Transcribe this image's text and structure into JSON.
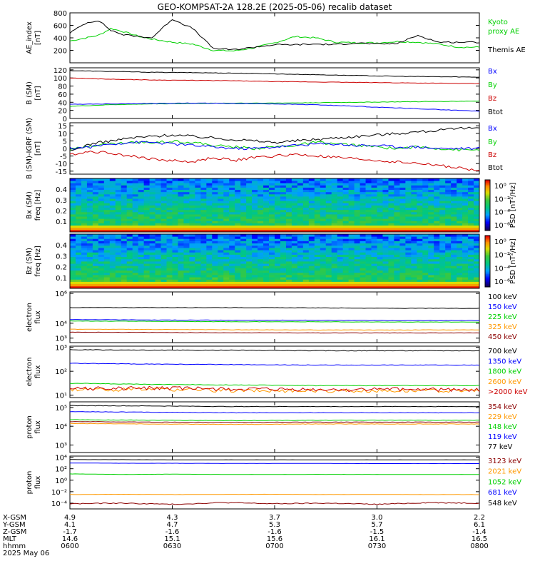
{
  "title": "GEO-KOMPSAT-2A 128.2E (2025-05-06) recalib dataset",
  "colors": {
    "black": "#000000",
    "blue": "#0000ff",
    "green": "#00d000",
    "red": "#cc0000",
    "orange": "#ff9900",
    "darkred": "#8b0000"
  },
  "chart_data": [
    {
      "id": "ae",
      "type": "line",
      "ylabel": [
        "AE_index",
        "[nT]"
      ],
      "ylim": [
        0,
        800
      ],
      "yticks": [
        "800",
        "600",
        "400",
        "200"
      ],
      "ytick_values": [
        800,
        600,
        400,
        200
      ],
      "x": [
        0,
        0.04,
        0.07,
        0.1,
        0.13,
        0.17,
        0.2,
        0.25,
        0.3,
        0.35,
        0.4,
        0.45,
        0.5,
        0.55,
        0.6,
        0.65,
        0.7,
        0.75,
        0.8,
        0.85,
        0.9,
        0.95,
        1
      ],
      "series": [
        {
          "name": "Kyoto proxy AE",
          "color": "green",
          "values": [
            350,
            400,
            440,
            550,
            500,
            420,
            380,
            330,
            300,
            200,
            190,
            240,
            320,
            420,
            400,
            330,
            320,
            320,
            340,
            330,
            300,
            250,
            250
          ]
        },
        {
          "name": "Themis AE",
          "color": "black",
          "values": [
            480,
            640,
            680,
            520,
            450,
            420,
            400,
            700,
            550,
            230,
            210,
            250,
            290,
            290,
            300,
            290,
            320,
            300,
            310,
            440,
            330,
            330,
            330
          ]
        }
      ],
      "legend": [
        {
          "label": "Kyoto",
          "color": "green"
        },
        {
          "label": "proxy AE",
          "color": "green"
        },
        {
          "label": "Themis AE",
          "color": "black"
        }
      ]
    },
    {
      "id": "bsm",
      "type": "line",
      "ylabel": [
        "B (SM)",
        "[nT]"
      ],
      "ylim": [
        0,
        125
      ],
      "yticks": [
        "120",
        "100",
        "80",
        "60",
        "40",
        "20",
        "0"
      ],
      "ytick_values": [
        120,
        100,
        80,
        60,
        40,
        20,
        0
      ],
      "x": [
        0,
        0.1,
        0.2,
        0.3,
        0.4,
        0.5,
        0.6,
        0.7,
        0.8,
        0.9,
        1
      ],
      "series": [
        {
          "name": "Btot",
          "color": "black",
          "values": [
            118,
            116,
            114,
            113,
            112,
            110,
            108,
            106,
            104,
            103,
            102
          ]
        },
        {
          "name": "Bz",
          "color": "red",
          "values": [
            100,
            97,
            95,
            94,
            93,
            91,
            90,
            89,
            88,
            87,
            86
          ]
        },
        {
          "name": "By",
          "color": "green",
          "values": [
            30,
            34,
            36,
            37,
            38,
            38,
            39,
            40,
            41,
            42,
            43
          ]
        },
        {
          "name": "Bx",
          "color": "blue",
          "values": [
            35,
            36,
            37,
            38,
            37,
            36,
            34,
            30,
            26,
            22,
            18
          ]
        }
      ],
      "legend": [
        {
          "label": "Bx",
          "color": "blue"
        },
        {
          "label": "By",
          "color": "green"
        },
        {
          "label": "Bz",
          "color": "red"
        },
        {
          "label": "Btot",
          "color": "black"
        }
      ]
    },
    {
      "id": "bigrf",
      "type": "line",
      "ylabel": [
        "B (SM)-IGRF (SM)",
        "[nT]"
      ],
      "ylim": [
        -17,
        17
      ],
      "yticks": [
        "15",
        "10",
        "5",
        "0",
        "-5",
        "-10",
        "-15"
      ],
      "ytick_values": [
        15,
        10,
        5,
        0,
        -5,
        -10,
        -15
      ],
      "x": [
        0,
        0.05,
        0.1,
        0.15,
        0.2,
        0.25,
        0.3,
        0.35,
        0.4,
        0.45,
        0.5,
        0.55,
        0.6,
        0.65,
        0.7,
        0.75,
        0.8,
        0.85,
        0.9,
        0.95,
        1
      ],
      "series": [
        {
          "name": "Btot",
          "color": "black",
          "values": [
            -2,
            3,
            5,
            7,
            8,
            9,
            8,
            7,
            6,
            5,
            4,
            5,
            6,
            7,
            8,
            9,
            10,
            11,
            12,
            13,
            14
          ]
        },
        {
          "name": "Bz",
          "color": "red",
          "values": [
            -4,
            -2,
            -3,
            -5,
            -7,
            -8,
            -9,
            -6,
            -8,
            -6,
            -5,
            -4,
            -5,
            -6,
            -7,
            -8,
            -9,
            -10,
            -11,
            -13,
            -15
          ]
        },
        {
          "name": "By",
          "color": "green",
          "values": [
            -1,
            2,
            3,
            4,
            4,
            5,
            4,
            2,
            1,
            0,
            1,
            2,
            4,
            3,
            2,
            1,
            0,
            1,
            0,
            -1,
            -1
          ]
        },
        {
          "name": "Bx",
          "color": "blue",
          "values": [
            0,
            1,
            3,
            4,
            4,
            3,
            2,
            1,
            0,
            0,
            1,
            2,
            3,
            3,
            2,
            2,
            1,
            1,
            0,
            0,
            0
          ]
        }
      ],
      "legend": [
        {
          "label": "Bx",
          "color": "blue"
        },
        {
          "label": "By",
          "color": "green"
        },
        {
          "label": "Bz",
          "color": "red"
        },
        {
          "label": "Btot",
          "color": "black"
        }
      ]
    },
    {
      "id": "spec_bx",
      "type": "heatmap",
      "ylabel": [
        "Bx (SM)",
        "freq [Hz]"
      ],
      "ylim": [
        0,
        0.5
      ],
      "yticks": [
        "0.4",
        "0.3",
        "0.2",
        "0.1"
      ],
      "ytick_values": [
        0.4,
        0.3,
        0.2,
        0.1
      ],
      "colorbar": {
        "labels": [
          "10⁰",
          "10⁻²",
          "10⁻⁴",
          "10⁻⁶"
        ],
        "title": "PSD [nT²/Hz]"
      }
    },
    {
      "id": "spec_bz",
      "type": "heatmap",
      "ylabel": [
        "Bz (SM)",
        "freq [Hz]"
      ],
      "ylim": [
        0,
        0.5
      ],
      "yticks": [
        "0.4",
        "0.3",
        "0.2",
        "0.1"
      ],
      "ytick_values": [
        0.4,
        0.3,
        0.2,
        0.1
      ],
      "colorbar": {
        "labels": [
          "10⁰",
          "10⁻²",
          "10⁻⁴",
          "10⁻⁶"
        ],
        "title": "PSD [nT²/Hz]"
      }
    },
    {
      "id": "eflux1",
      "type": "line",
      "log": true,
      "ylabel": [
        "electron",
        "flux"
      ],
      "ylim_exp": [
        2.7,
        6.1
      ],
      "yticks": [
        "10⁶",
        "10⁴",
        "10³"
      ],
      "ytick_exps": [
        6,
        4,
        3
      ],
      "series": [
        {
          "name": "100 keV",
          "color": "black",
          "values_exp": [
            5.05,
            5.05,
            5.05,
            5.03,
            5.0,
            5.0
          ]
        },
        {
          "name": "150 keV",
          "color": "blue",
          "values_exp": [
            4.25,
            4.22,
            4.2,
            4.2,
            4.18,
            4.18
          ]
        },
        {
          "name": "225 keV",
          "color": "green",
          "values_exp": [
            4.15,
            4.13,
            4.1,
            4.1,
            4.08,
            4.08
          ]
        },
        {
          "name": "325 keV",
          "color": "orange",
          "values_exp": [
            3.6,
            3.58,
            3.56,
            3.55,
            3.55,
            3.55
          ]
        },
        {
          "name": "450 keV",
          "color": "darkred",
          "values_exp": [
            3.4,
            3.38,
            3.36,
            3.35,
            3.35,
            3.35
          ]
        }
      ]
    },
    {
      "id": "eflux2",
      "type": "line",
      "log": true,
      "ylabel": [
        "electron",
        "flux"
      ],
      "ylim_exp": [
        0.9,
        3.05
      ],
      "yticks": [
        "10³",
        "10²",
        "10¹"
      ],
      "ytick_exps": [
        3,
        2,
        1
      ],
      "series": [
        {
          "name": "700 keV",
          "color": "black",
          "values_exp": [
            2.9,
            2.88,
            2.88,
            2.86,
            2.86,
            2.86
          ]
        },
        {
          "name": "1350 keV",
          "color": "blue",
          "values_exp": [
            2.33,
            2.3,
            2.28,
            2.26,
            2.26,
            2.26
          ]
        },
        {
          "name": "1800 keV",
          "color": "green",
          "values_exp": [
            1.5,
            1.45,
            1.43,
            1.4,
            1.4,
            1.4
          ]
        },
        {
          "name": "2600 keV",
          "color": "orange",
          "values_exp": [
            1.22,
            1.25,
            1.2,
            1.18,
            1.2,
            1.18
          ]
        },
        {
          "name": ">2000 keV",
          "color": "red",
          "values_exp": [
            1.27,
            1.3,
            1.25,
            1.22,
            1.25,
            1.22
          ]
        }
      ]
    },
    {
      "id": "pflux1",
      "type": "line",
      "log": true,
      "ylabel": [
        "proton",
        "flux"
      ],
      "ylim_exp": [
        2.6,
        5.3
      ],
      "yticks": [
        "10⁵",
        "10⁴",
        "10³"
      ],
      "ytick_exps": [
        5,
        4,
        3
      ],
      "series": [
        {
          "name": "354 keV",
          "color": "darkred",
          "values_exp": [
            4.25,
            4.22,
            4.2,
            4.22,
            4.22,
            4.22
          ]
        },
        {
          "name": "229 keV",
          "color": "orange",
          "values_exp": [
            4.15,
            4.12,
            4.1,
            4.12,
            4.12,
            4.12
          ]
        },
        {
          "name": "148 keV",
          "color": "green",
          "values_exp": [
            4.35,
            4.32,
            4.3,
            4.32,
            4.32,
            4.32
          ]
        },
        {
          "name": "119 keV",
          "color": "blue",
          "values_exp": [
            4.78,
            4.75,
            4.72,
            4.72,
            4.72,
            4.72
          ]
        },
        {
          "name": "77 keV",
          "color": "black",
          "values_exp": [
            5.1,
            5.08,
            5.05,
            5.05,
            5.05,
            5.05
          ]
        }
      ]
    },
    {
      "id": "pflux2",
      "type": "line",
      "log": true,
      "ylabel": [
        "proton",
        "flux"
      ],
      "ylim_exp": [
        -5,
        4.2
      ],
      "yticks": [
        "10⁴",
        "10²",
        "10⁰",
        "10⁻²",
        "10⁻⁴"
      ],
      "ytick_exps": [
        4,
        2,
        0,
        -2,
        -4
      ],
      "series": [
        {
          "name": "3123 keV",
          "color": "darkred",
          "values_exp": [
            -4.1,
            -4.0,
            -4.2,
            -3.9,
            -4.1,
            -4.0,
            -4.2,
            -3.9,
            -4.0
          ]
        },
        {
          "name": "2021 keV",
          "color": "orange",
          "values_exp": [
            -2.5,
            -2.45,
            -2.5,
            -2.48,
            -2.45,
            -2.5,
            -2.48,
            -2.5,
            -2.5
          ]
        },
        {
          "name": "1052 keV",
          "color": "green",
          "values_exp": [
            1.1,
            1.0,
            1.05,
            1.0,
            1.0,
            1.02,
            1.0,
            1.0,
            1.0
          ]
        },
        {
          "name": "681 keV",
          "color": "blue",
          "values_exp": [
            3.0,
            2.95,
            2.95,
            2.92,
            2.92,
            2.92,
            2.9,
            2.9,
            2.9
          ]
        },
        {
          "name": "548 keV",
          "color": "black",
          "values_exp": [
            3.6,
            3.58,
            3.55,
            3.55,
            3.55,
            3.55,
            3.55,
            3.55,
            3.55
          ]
        }
      ]
    }
  ],
  "ephemeris": {
    "labels": [
      "X-GSM",
      "Y-GSM",
      "Z-GSM",
      "MLT",
      "hhmm",
      "2025 May 06"
    ],
    "columns": [
      {
        "vals": [
          "4.9",
          "4.1",
          "-1.7",
          "14.6",
          "0600"
        ]
      },
      {
        "vals": [
          "4.3",
          "4.7",
          "-1.6",
          "15.1",
          "0630"
        ]
      },
      {
        "vals": [
          "3.7",
          "5.3",
          "-1.6",
          "15.6",
          "0700"
        ]
      },
      {
        "vals": [
          "3.0",
          "5.7",
          "-1.5",
          "16.1",
          "0730"
        ]
      },
      {
        "vals": [
          "2.2",
          "6.1",
          "-1.4",
          "16.5",
          "0800"
        ]
      }
    ]
  }
}
